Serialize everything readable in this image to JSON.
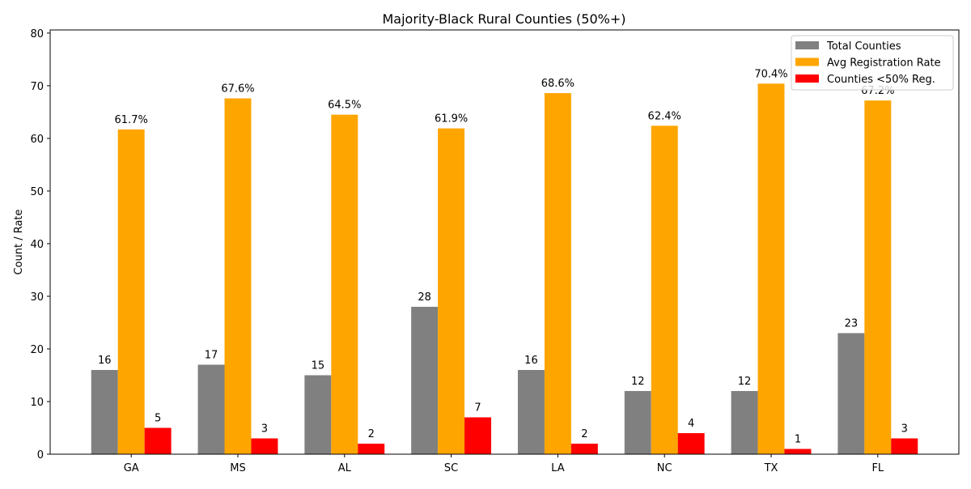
{
  "chart_data": {
    "type": "bar",
    "title": "Majority-Black Rural Counties (50%+)",
    "xlabel": "",
    "ylabel": "Count / Rate",
    "ylim": [
      0,
      80.6
    ],
    "yticks": [
      0,
      10,
      20,
      30,
      40,
      50,
      60,
      70,
      80
    ],
    "grid": false,
    "legend_position": "top-right",
    "categories": [
      "GA",
      "MS",
      "AL",
      "SC",
      "LA",
      "NC",
      "TX",
      "FL"
    ],
    "series": [
      {
        "name": "Total Counties",
        "color": "#808080",
        "values": [
          16,
          17,
          15,
          28,
          16,
          12,
          12,
          23
        ],
        "labels": [
          "16",
          "17",
          "15",
          "28",
          "16",
          "12",
          "12",
          "23"
        ]
      },
      {
        "name": "Avg Registration Rate",
        "color": "#ffa500",
        "values": [
          61.7,
          67.6,
          64.5,
          61.9,
          68.6,
          62.4,
          70.4,
          67.2
        ],
        "labels": [
          "61.7%",
          "67.6%",
          "64.5%",
          "61.9%",
          "68.6%",
          "62.4%",
          "70.4%",
          "67.2%"
        ]
      },
      {
        "name": "Counties <50% Reg.",
        "color": "#ff0000",
        "values": [
          5,
          3,
          2,
          7,
          2,
          4,
          1,
          3
        ],
        "labels": [
          "5",
          "3",
          "2",
          "7",
          "2",
          "4",
          "1",
          "3"
        ]
      }
    ]
  }
}
